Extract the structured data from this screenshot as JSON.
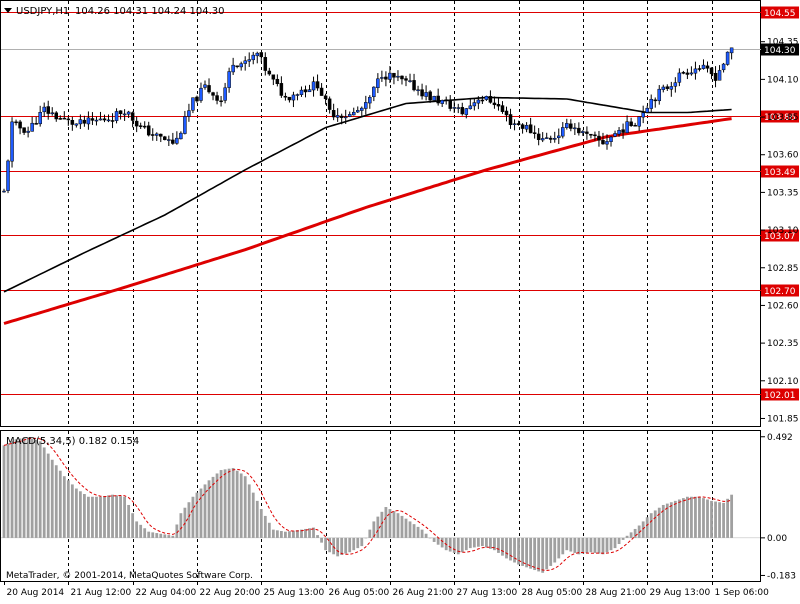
{
  "header": {
    "symbol": "USDJPY,H1",
    "ohlc": "104.26 104.31 104.24 104.30",
    "menu_icon": "triangle-down-icon"
  },
  "macd": {
    "label": "MACD(5,34,5) 0.182 0.154"
  },
  "copyright": "MetaTrader, © 2001-2014, MetaQuotes Software Corp.",
  "colors": {
    "candle": "#000000",
    "up_body": "#1e5bff",
    "down_body": "#000000",
    "level_line": "#dd0000",
    "ma_slow": "#dd0000",
    "ma_fast": "#000000",
    "macd_hist": "#a0a0a0",
    "macd_signal": "#dd0000",
    "current_price_line": "#b0b0b0"
  },
  "chart_data": [
    {
      "type": "candlestick",
      "symbol": "USDJPY",
      "timeframe": "H1",
      "ylim": [
        101.8,
        104.62
      ],
      "y_ticks": [
        "104.35",
        "104.10",
        "103.85",
        "103.60",
        "103.35",
        "103.10",
        "102.85",
        "102.60",
        "102.35",
        "102.10",
        "101.85"
      ],
      "x_ticks": [
        "20 Aug 2014",
        "21 Aug 12:00",
        "22 Aug 04:00",
        "22 Aug 20:00",
        "25 Aug 13:00",
        "26 Aug 05:00",
        "26 Aug 21:00",
        "27 Aug 13:00",
        "28 Aug 05:00",
        "28 Aug 21:00",
        "29 Aug 13:00",
        "1 Sep 06:00"
      ],
      "levels": [
        "104.55",
        "103.86",
        "103.49",
        "103.07",
        "102.70",
        "102.01"
      ],
      "current_price": "104.30",
      "anchors": [
        [
          0,
          103.35
        ],
        [
          2,
          103.8
        ],
        [
          6,
          103.76
        ],
        [
          10,
          103.9
        ],
        [
          14,
          103.84
        ],
        [
          18,
          103.8
        ],
        [
          22,
          103.82
        ],
        [
          27,
          103.85
        ],
        [
          30,
          103.9
        ],
        [
          34,
          103.78
        ],
        [
          38,
          103.72
        ],
        [
          42,
          103.68
        ],
        [
          43,
          103.7
        ],
        [
          47,
          103.95
        ],
        [
          50,
          104.05
        ],
        [
          54,
          103.96
        ],
        [
          57,
          104.22
        ],
        [
          60,
          104.2
        ],
        [
          63,
          104.27
        ],
        [
          66,
          104.12
        ],
        [
          70,
          103.98
        ],
        [
          74,
          104.03
        ],
        [
          78,
          104.07
        ],
        [
          81,
          103.88
        ],
        [
          86,
          103.86
        ],
        [
          90,
          103.92
        ],
        [
          94,
          104.14
        ],
        [
          98,
          104.1
        ],
        [
          102,
          104.05
        ],
        [
          106,
          103.98
        ],
        [
          110,
          103.94
        ],
        [
          114,
          103.88
        ],
        [
          118,
          103.98
        ],
        [
          122,
          103.95
        ],
        [
          126,
          103.82
        ],
        [
          130,
          103.78
        ],
        [
          134,
          103.7
        ],
        [
          137,
          103.72
        ],
        [
          141,
          103.8
        ],
        [
          145,
          103.72
        ],
        [
          149,
          103.68
        ],
        [
          153,
          103.76
        ],
        [
          157,
          103.82
        ],
        [
          161,
          103.97
        ],
        [
          165,
          104.05
        ],
        [
          169,
          104.15
        ],
        [
          173,
          104.18
        ],
        [
          177,
          104.12
        ],
        [
          181,
          104.3
        ]
      ],
      "ma_fast": [
        [
          0,
          102.69
        ],
        [
          20,
          102.95
        ],
        [
          40,
          103.2
        ],
        [
          60,
          103.5
        ],
        [
          80,
          103.78
        ],
        [
          100,
          103.94
        ],
        [
          120,
          103.98
        ],
        [
          140,
          103.97
        ],
        [
          160,
          103.88
        ],
        [
          170,
          103.88
        ],
        [
          181,
          103.9
        ]
      ],
      "ma_slow": [
        [
          0,
          102.48
        ],
        [
          30,
          102.72
        ],
        [
          60,
          102.97
        ],
        [
          90,
          103.25
        ],
        [
          120,
          103.5
        ],
        [
          150,
          103.72
        ],
        [
          181,
          103.84
        ]
      ]
    },
    {
      "type": "histogram",
      "name": "MACD(5,34,5)",
      "main_value": 0.182,
      "signal_value": 0.154,
      "y_ticks": [
        "0.492",
        "0.00",
        "-0.183"
      ],
      "ylim": [
        -0.21,
        0.52
      ],
      "anchors": [
        [
          0,
          0.45
        ],
        [
          3,
          0.48
        ],
        [
          6,
          0.49
        ],
        [
          9,
          0.47
        ],
        [
          12,
          0.38
        ],
        [
          15,
          0.3
        ],
        [
          18,
          0.24
        ],
        [
          21,
          0.2
        ],
        [
          24,
          0.2
        ],
        [
          27,
          0.21
        ],
        [
          30,
          0.2
        ],
        [
          33,
          0.08
        ],
        [
          36,
          0.03
        ],
        [
          39,
          0.02
        ],
        [
          42,
          0.01
        ],
        [
          44,
          0.12
        ],
        [
          47,
          0.2
        ],
        [
          51,
          0.28
        ],
        [
          54,
          0.33
        ],
        [
          57,
          0.34
        ],
        [
          60,
          0.3
        ],
        [
          64,
          0.14
        ],
        [
          67,
          0.04
        ],
        [
          70,
          0.03
        ],
        [
          74,
          0.04
        ],
        [
          77,
          0.05
        ],
        [
          80,
          -0.06
        ],
        [
          83,
          -0.09
        ],
        [
          86,
          -0.07
        ],
        [
          89,
          -0.04
        ],
        [
          92,
          0.08
        ],
        [
          95,
          0.15
        ],
        [
          98,
          0.12
        ],
        [
          101,
          0.08
        ],
        [
          104,
          0.04
        ],
        [
          107,
          -0.02
        ],
        [
          110,
          -0.06
        ],
        [
          113,
          -0.08
        ],
        [
          116,
          -0.05
        ],
        [
          119,
          -0.04
        ],
        [
          122,
          -0.06
        ],
        [
          125,
          -0.1
        ],
        [
          128,
          -0.13
        ],
        [
          131,
          -0.15
        ],
        [
          134,
          -0.17
        ],
        [
          137,
          -0.12
        ],
        [
          140,
          -0.06
        ],
        [
          143,
          -0.08
        ],
        [
          146,
          -0.07
        ],
        [
          149,
          -0.08
        ],
        [
          152,
          -0.05
        ],
        [
          155,
          0.01
        ],
        [
          158,
          0.06
        ],
        [
          161,
          0.12
        ],
        [
          164,
          0.16
        ],
        [
          167,
          0.18
        ],
        [
          170,
          0.2
        ],
        [
          173,
          0.2
        ],
        [
          176,
          0.18
        ],
        [
          179,
          0.17
        ],
        [
          181,
          0.21
        ]
      ]
    }
  ]
}
